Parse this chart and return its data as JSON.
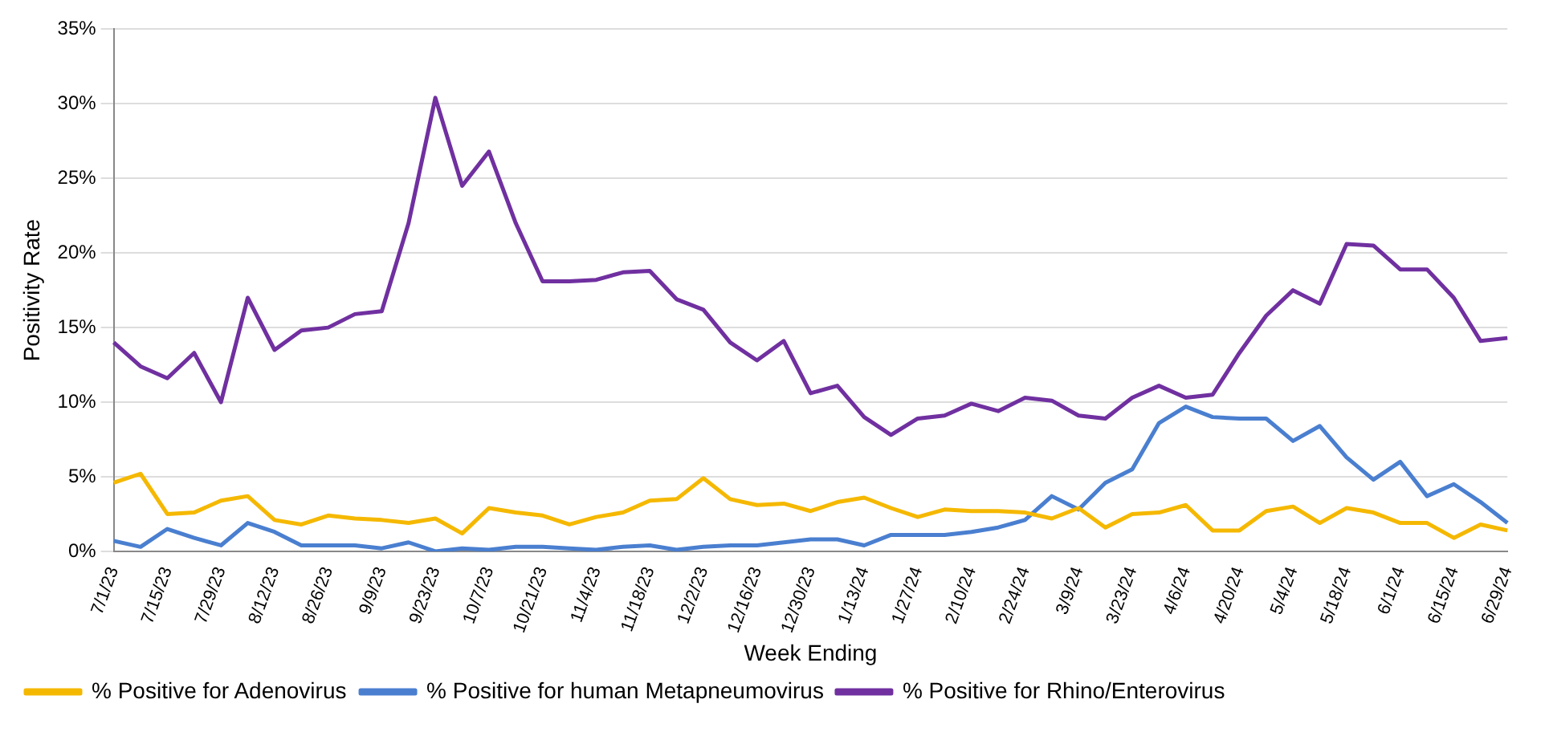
{
  "chart_data": {
    "type": "line",
    "xlabel": "Week Ending",
    "ylabel": "Positivity Rate",
    "categories": [
      "7/1/23",
      null,
      "7/15/23",
      null,
      "7/29/23",
      null,
      "8/12/23",
      null,
      "8/26/23",
      null,
      "9/9/23",
      null,
      "9/23/23",
      null,
      "10/7/23",
      null,
      "10/21/23",
      null,
      "11/4/23",
      null,
      "11/18/23",
      null,
      "12/2/23",
      null,
      "12/16/23",
      null,
      "12/30/23",
      null,
      "1/13/24",
      null,
      "1/27/24",
      null,
      "2/10/24",
      null,
      "2/24/24",
      null,
      "3/9/24",
      null,
      "3/23/24",
      null,
      "4/6/24",
      null,
      "4/20/24",
      null,
      "5/4/24",
      null,
      "5/18/24",
      null,
      "6/1/24",
      null,
      "6/15/24",
      null,
      "6/29/24"
    ],
    "series": [
      {
        "name": "% Positive for Adenovirus",
        "color": "#f5b800",
        "values": [
          4.6,
          5.2,
          2.5,
          2.6,
          3.4,
          3.7,
          2.1,
          1.8,
          2.4,
          2.2,
          2.1,
          1.9,
          2.2,
          1.2,
          2.9,
          2.6,
          2.4,
          1.8,
          2.3,
          2.6,
          3.4,
          3.5,
          4.9,
          3.5,
          3.1,
          3.2,
          2.7,
          3.3,
          3.6,
          2.9,
          2.3,
          2.8,
          2.7,
          2.7,
          2.6,
          2.2,
          2.9,
          1.6,
          2.5,
          2.6,
          3.1,
          1.4,
          1.4,
          2.7,
          3.0,
          1.9,
          2.9,
          2.6,
          1.9,
          1.9,
          0.9,
          1.8,
          1.4
        ]
      },
      {
        "name": "% Positive for human Metapneumovirus",
        "color": "#4a7fd0",
        "values": [
          0.7,
          0.3,
          1.5,
          0.9,
          0.4,
          1.9,
          1.3,
          0.4,
          0.4,
          0.4,
          0.2,
          0.6,
          0.0,
          0.2,
          0.1,
          0.3,
          0.3,
          0.2,
          0.1,
          0.3,
          0.4,
          0.1,
          0.3,
          0.4,
          0.4,
          0.6,
          0.8,
          0.8,
          0.4,
          1.1,
          1.1,
          1.1,
          1.3,
          1.6,
          2.1,
          3.7,
          2.8,
          4.6,
          5.5,
          8.6,
          9.7,
          9.0,
          8.9,
          8.9,
          7.4,
          8.4,
          6.3,
          4.8,
          6.0,
          3.7,
          4.5,
          3.3,
          1.9
        ]
      },
      {
        "name": "% Positive for Rhino/Enterovirus",
        "color": "#7030a0",
        "values": [
          14.0,
          12.4,
          11.6,
          13.3,
          10.0,
          17.0,
          13.5,
          14.8,
          15.0,
          15.9,
          16.1,
          22.0,
          30.4,
          24.5,
          26.8,
          22.0,
          18.1,
          18.1,
          18.2,
          18.7,
          18.8,
          16.9,
          16.2,
          14.0,
          12.8,
          14.1,
          10.6,
          11.1,
          9.0,
          7.8,
          8.9,
          9.1,
          9.9,
          9.4,
          10.3,
          10.1,
          9.1,
          8.9,
          10.3,
          11.1,
          10.3,
          10.5,
          13.3,
          15.8,
          17.5,
          16.6,
          20.6,
          20.5,
          18.9,
          18.9,
          17.0,
          14.1,
          14.3
        ]
      }
    ],
    "ylim": [
      0,
      35
    ],
    "yticks": [
      {
        "value": 0,
        "label": "0%"
      },
      {
        "value": 5,
        "label": "5%"
      },
      {
        "value": 10,
        "label": "10%"
      },
      {
        "value": 15,
        "label": "15%"
      },
      {
        "value": 20,
        "label": "20%"
      },
      {
        "value": 25,
        "label": "25%"
      },
      {
        "value": 30,
        "label": "30%"
      },
      {
        "value": 35,
        "label": "35%"
      }
    ],
    "grid": "y",
    "legend": "bottom",
    "marker": "none",
    "line_style": "solid"
  }
}
